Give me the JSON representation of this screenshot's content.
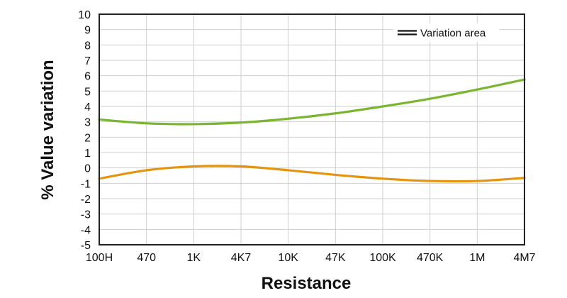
{
  "chart_data": {
    "type": "line",
    "xlabel": "Resistance",
    "ylabel": "% Value variation",
    "categories": [
      "100H",
      "470",
      "1K",
      "4K7",
      "10K",
      "47K",
      "100K",
      "470K",
      "1M",
      "4M7"
    ],
    "ylim": [
      -5,
      10
    ],
    "yticks": [
      "10",
      "9",
      "8",
      "7",
      "6",
      "5",
      "4",
      "3",
      "2",
      "1",
      "0",
      "-1",
      "-2",
      "-3",
      "-4",
      "-5"
    ],
    "grid": true,
    "legend": {
      "position": "top-right",
      "label": "Variation area"
    },
    "series": [
      {
        "color": "#7ab530",
        "values": [
          3.15,
          2.9,
          2.85,
          2.95,
          3.2,
          3.55,
          4.0,
          4.5,
          5.1,
          5.75
        ]
      },
      {
        "color": "#e5940f",
        "values": [
          -0.7,
          -0.15,
          0.1,
          0.1,
          -0.15,
          -0.45,
          -0.7,
          -0.85,
          -0.85,
          -0.65
        ]
      }
    ]
  }
}
